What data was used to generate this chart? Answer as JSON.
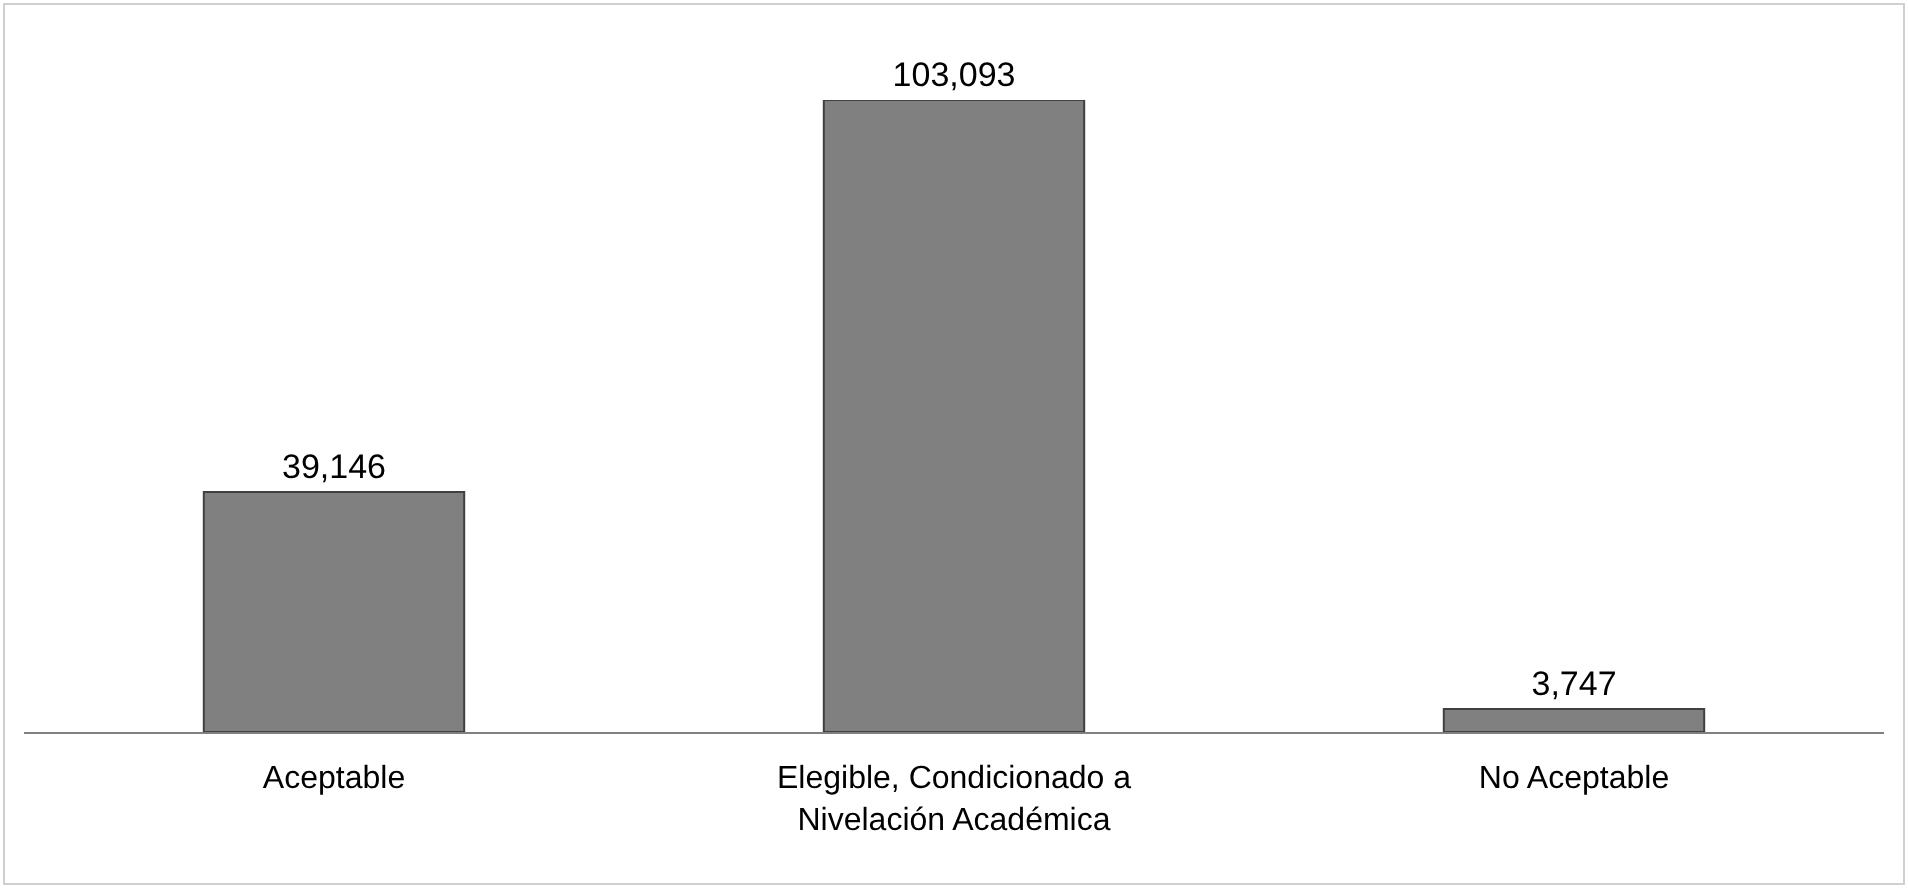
{
  "chart_data": {
    "type": "bar",
    "categories": [
      "Aceptable",
      "Elegible, Condicionado a Nivelación Académica",
      "No Aceptable"
    ],
    "values": [
      39146,
      103093,
      3747
    ],
    "value_labels": [
      "39,146",
      "103,093",
      "3,747"
    ],
    "color": "#808080"
  }
}
